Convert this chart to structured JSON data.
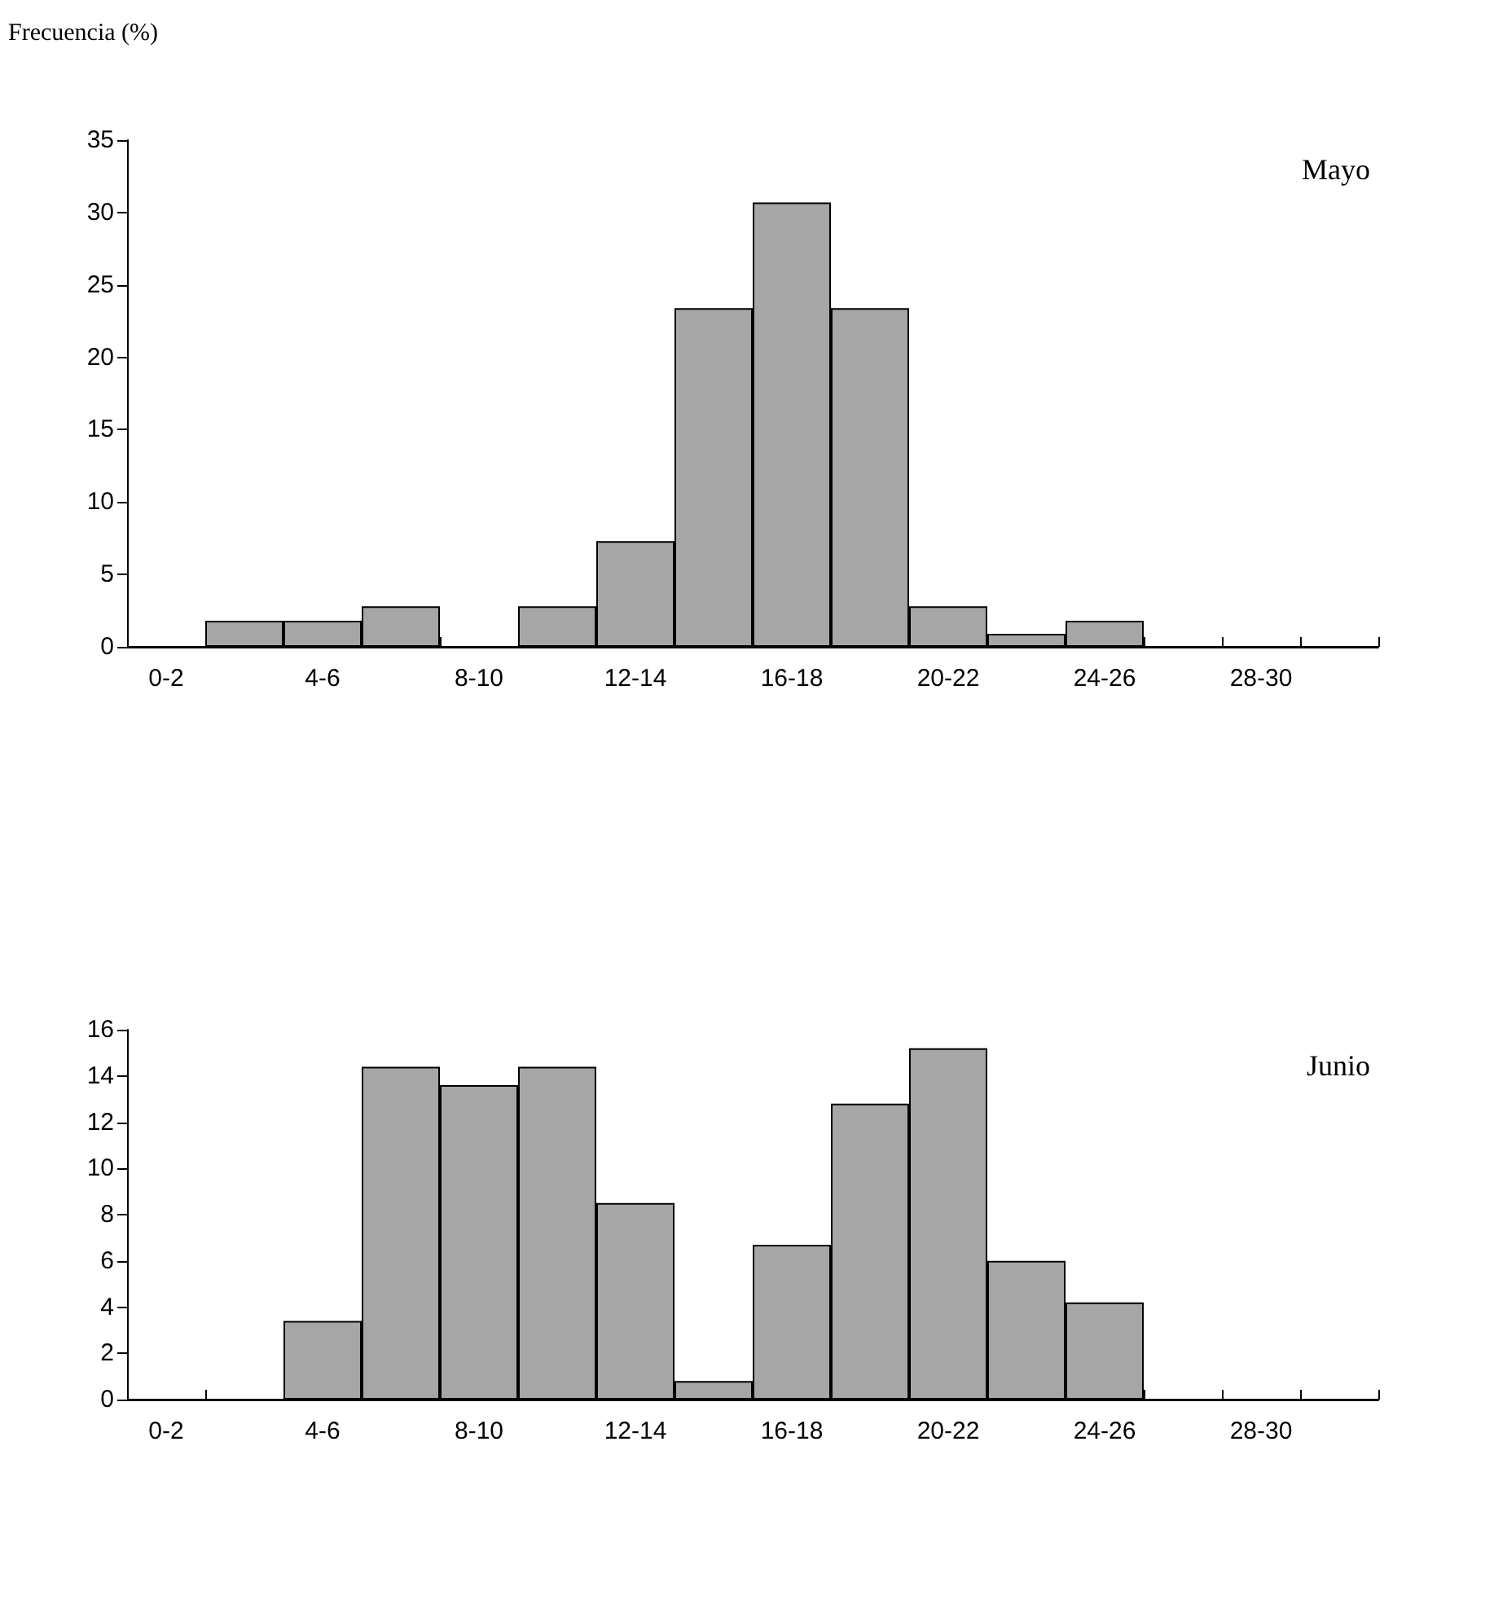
{
  "chart_data": [
    {
      "type": "bar",
      "title": "Mayo",
      "ylabel": "Frecuencia (%)",
      "categories": [
        "0-2",
        null,
        "4-6",
        null,
        "8-10",
        null,
        "12-14",
        null,
        "16-18",
        null,
        "20-22",
        null,
        "24-26",
        null,
        "28-30",
        null
      ],
      "values": [
        0,
        1.8,
        1.8,
        2.8,
        0,
        2.8,
        7.3,
        23.4,
        30.7,
        23.4,
        2.8,
        0.9,
        1.8,
        0,
        0,
        0
      ],
      "color": "#a6a6a6",
      "ylim": [
        0,
        35
      ],
      "yticks": [
        0,
        5,
        10,
        15,
        20,
        25,
        30,
        35
      ],
      "grid": false
    },
    {
      "type": "bar",
      "title": "Junio",
      "categories": [
        "0-2",
        null,
        "4-6",
        null,
        "8-10",
        null,
        "12-14",
        null,
        "16-18",
        null,
        "20-22",
        null,
        "24-26",
        null,
        "28-30",
        null
      ],
      "values": [
        0,
        0,
        3.4,
        14.4,
        13.6,
        14.4,
        8.5,
        0.8,
        6.7,
        12.8,
        15.2,
        6.0,
        4.2,
        0,
        0,
        0
      ],
      "color": "#a6a6a6",
      "ylim": [
        0,
        16
      ],
      "yticks": [
        0,
        2,
        4,
        6,
        8,
        10,
        12,
        14,
        16
      ],
      "grid": false
    }
  ]
}
